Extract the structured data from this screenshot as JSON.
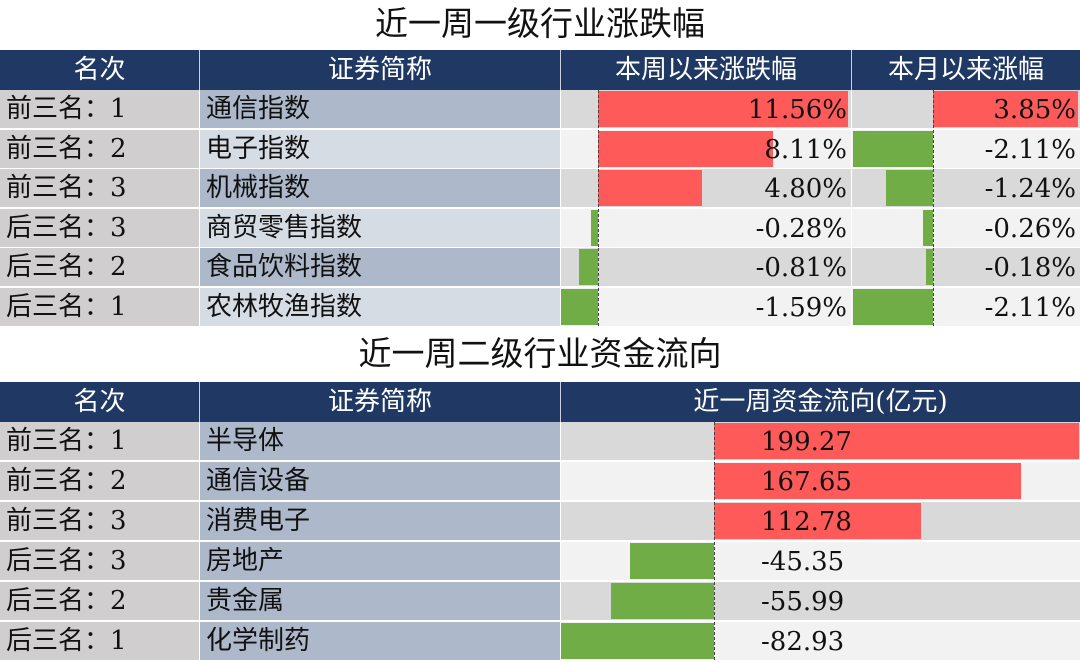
{
  "table1": {
    "title": "近一周一级行业涨跌幅",
    "headers": [
      "名次",
      "证券简称",
      "本周以来涨跌幅",
      "本月以来涨幅"
    ],
    "rows": [
      {
        "rank": "前三名：1",
        "name": "通信指数",
        "week": "11.56%",
        "month": "3.85%"
      },
      {
        "rank": "前三名：2",
        "name": "电子指数",
        "week": "8.11%",
        "month": "-2.11%"
      },
      {
        "rank": "前三名：3",
        "name": "机械指数",
        "week": "4.80%",
        "month": "-1.24%"
      },
      {
        "rank": "后三名：3",
        "name": "商贸零售指数",
        "week": "-0.28%",
        "month": "-0.26%"
      },
      {
        "rank": "后三名：2",
        "name": "食品饮料指数",
        "week": "-0.81%",
        "month": "-0.18%"
      },
      {
        "rank": "后三名：1",
        "name": "农林牧渔指数",
        "week": "-1.59%",
        "month": "-2.11%"
      }
    ]
  },
  "table2": {
    "title": "近一周二级行业资金流向",
    "headers": [
      "名次",
      "证券简称",
      "近一周资金流向(亿元)"
    ],
    "rows": [
      {
        "rank": "前三名：1",
        "name": "半导体",
        "flow": "199.27"
      },
      {
        "rank": "前三名：2",
        "name": "通信设备",
        "flow": "167.65"
      },
      {
        "rank": "前三名：3",
        "name": "消费电子",
        "flow": "112.78"
      },
      {
        "rank": "后三名：3",
        "name": "房地产",
        "flow": "-45.35"
      },
      {
        "rank": "后三名：2",
        "name": "贵金属",
        "flow": "-55.99"
      },
      {
        "rank": "后三名：1",
        "name": "化学制药",
        "flow": "-82.93"
      }
    ]
  },
  "colors": {
    "header_bg": "#203864",
    "positive_bar": "#ff5a5a",
    "negative_bar": "#70ad47"
  }
}
